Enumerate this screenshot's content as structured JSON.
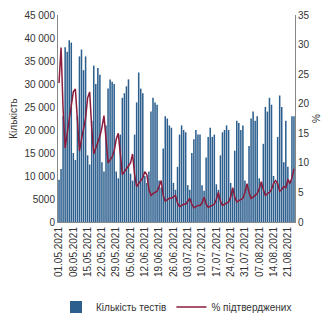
{
  "chart_data": {
    "type": "bar",
    "y_label": "Кількість",
    "y2_label": "%",
    "categories": [
      "01.05.2021",
      null,
      null,
      null,
      null,
      null,
      null,
      "08.05.2021",
      null,
      null,
      null,
      null,
      null,
      null,
      "15.05.2021",
      null,
      null,
      null,
      null,
      null,
      null,
      "22.05.2021",
      null,
      null,
      null,
      null,
      null,
      null,
      "29.05.2021",
      null,
      null,
      null,
      null,
      null,
      null,
      "05.06.2021",
      null,
      null,
      null,
      null,
      null,
      null,
      "12.06.2021",
      null,
      null,
      null,
      null,
      null,
      null,
      "19.06.2021",
      null,
      null,
      null,
      null,
      null,
      null,
      "26.06.2021",
      null,
      null,
      null,
      null,
      null,
      null,
      "03.07.2021",
      null,
      null,
      null,
      null,
      null,
      null,
      "10.07.2021",
      null,
      null,
      null,
      null,
      null,
      null,
      "17.07.2021",
      null,
      null,
      null,
      null,
      null,
      null,
      "24.07.2021",
      null,
      null,
      null,
      null,
      null,
      null,
      "31.07.2021",
      null,
      null,
      null,
      null,
      null,
      null,
      "07.08.2021",
      null,
      null,
      null,
      null,
      null,
      null,
      "14.08.2021",
      null,
      null,
      null,
      null,
      null,
      null,
      "21.08.2021",
      null,
      null,
      null
    ],
    "series": [
      {
        "name": "Кількість тестів",
        "type": "bar",
        "color": "#2c5f8e",
        "values": [
          9200,
          11500,
          23000,
          38000,
          37000,
          39500,
          39000,
          15000,
          13500,
          23000,
          36000,
          37500,
          33000,
          36000,
          14500,
          12500,
          22000,
          34000,
          30000,
          33500,
          32000,
          13000,
          11000,
          21000,
          29000,
          31000,
          30500,
          30000,
          11000,
          9500,
          19000,
          27000,
          28000,
          29500,
          31000,
          10500,
          9000,
          19000,
          26000,
          32500,
          29000,
          28000,
          10000,
          8500,
          11000,
          24000,
          27000,
          26000,
          25500,
          9000,
          7500,
          16000,
          23000,
          22500,
          21000,
          20500,
          8500,
          7000,
          12000,
          19000,
          21000,
          20000,
          19500,
          8000,
          7000,
          15000,
          18000,
          20000,
          19000,
          19000,
          8000,
          6800,
          14000,
          18500,
          20500,
          18500,
          19000,
          8200,
          7000,
          14500,
          19500,
          20000,
          21000,
          20000,
          8500,
          7200,
          15500,
          22000,
          21500,
          20000,
          21000,
          9000,
          7500,
          16500,
          22500,
          24000,
          22000,
          23000,
          9500,
          8000,
          17000,
          25000,
          24000,
          27000,
          25500,
          10000,
          8500,
          18500,
          27500,
          25000,
          13000,
          22000,
          12000,
          9000,
          23000,
          23000
        ]
      },
      {
        "name": "% підтверджених",
        "type": "line",
        "axis": "y2",
        "color": "#8b1c3b",
        "values": [
          23.5,
          29.5,
          19,
          12.5,
          15,
          17.5,
          20,
          22,
          22.5,
          17,
          12,
          14,
          16,
          17.5,
          21,
          22,
          16,
          11.5,
          12.5,
          13.5,
          14.5,
          16,
          18,
          14,
          10,
          10.5,
          11,
          12,
          14,
          15,
          11,
          8,
          8.5,
          9,
          9.5,
          10,
          11.5,
          8,
          6,
          6.5,
          7,
          7.5,
          8.5,
          8,
          5.5,
          4.5,
          4.8,
          5,
          5.2,
          6,
          7,
          4.5,
          3.5,
          3.8,
          4,
          4,
          4.2,
          4.5,
          3.2,
          2.6,
          2.8,
          3,
          3,
          3.5,
          4,
          3,
          2.4,
          2.6,
          2.8,
          2.8,
          3.2,
          4.2,
          3,
          2.5,
          2.6,
          2.8,
          3,
          3.8,
          5,
          3.5,
          2.8,
          3,
          3.2,
          3.4,
          4.2,
          5.8,
          4.2,
          3.4,
          3.6,
          3.8,
          4,
          5,
          6.5,
          5,
          4,
          4.2,
          4.5,
          4.8,
          5.6,
          6.8,
          5.5,
          4.5,
          4.8,
          5,
          5.5,
          6.5,
          7,
          6.5,
          5.2,
          5.5,
          6,
          5.8,
          7.2,
          6.5,
          7.5,
          9
        ]
      }
    ],
    "ylim": [
      0,
      45000
    ],
    "yticks": [
      0,
      5000,
      {
        "value": 10000,
        "label": "10 000"
      },
      {
        "value": 15000,
        "label": "15 000"
      },
      {
        "value": 20000,
        "label": "20 000"
      },
      {
        "value": 25000,
        "label": "25 000"
      },
      {
        "value": 30000,
        "label": "30 000"
      },
      {
        "value": 35000,
        "label": "35 000"
      },
      {
        "value": 40000,
        "label": "40 000"
      },
      {
        "value": 45000,
        "label": "45 000"
      }
    ],
    "y2lim": [
      0,
      35
    ],
    "y2ticks": [
      0,
      5,
      10,
      15,
      20,
      25,
      30,
      35
    ],
    "legend": "bottom",
    "grid": false
  }
}
